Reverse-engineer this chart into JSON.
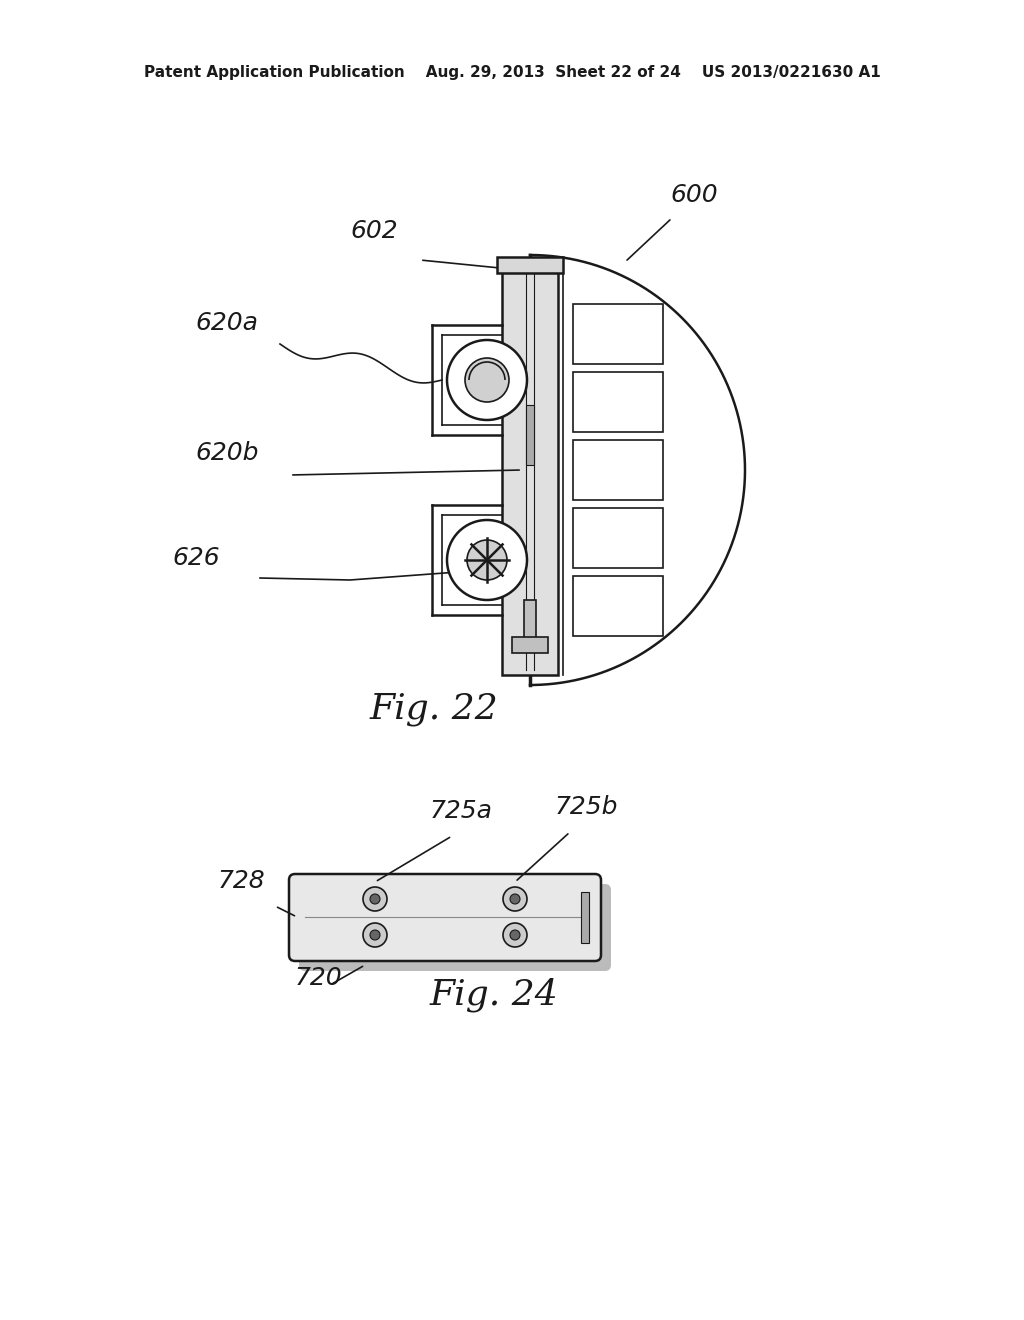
{
  "background_color": "#ffffff",
  "header": "Patent Application Publication    Aug. 29, 2013  Sheet 22 of 24    US 2013/0221630 A1",
  "fig22_caption": "Fig. 22",
  "fig24_caption": "Fig. 24",
  "label_600": "600",
  "label_602": "602",
  "label_620a": "620a",
  "label_620b": "620b",
  "label_626": "626",
  "label_725a": "725a",
  "label_725b": "725b",
  "label_728": "728",
  "label_720": "720",
  "dark": "#1a1a1a",
  "mid_gray": "#888888",
  "light_gray": "#cccccc",
  "very_light": "#e8e8e8"
}
